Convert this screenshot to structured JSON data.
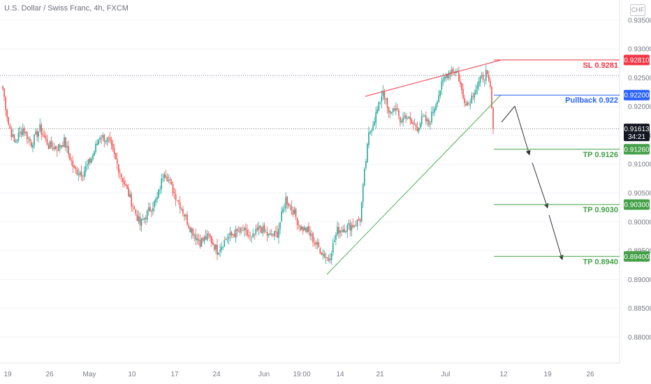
{
  "header": {
    "title": "U.S. Dollar / Swiss Franc, 4h, FXCM",
    "currency_badge": "CHF"
  },
  "chart_data": {
    "type": "candlestick",
    "title": "U.S. Dollar / Swiss Franc, 4h, FXCM",
    "ylim": [
      0.8755,
      0.9385
    ],
    "y_ticks": [
      "0.93500",
      "0.93000",
      "0.92500",
      "0.92000",
      "0.91500",
      "0.91000",
      "0.90500",
      "0.90000",
      "0.89500",
      "0.89000",
      "0.88500",
      "0.88000"
    ],
    "x_ticks": [
      "19",
      "26",
      "May",
      "10",
      "17",
      "24",
      "Jun",
      "19:00",
      "14",
      "21",
      "Jul",
      "12",
      "19",
      "26"
    ],
    "series_anchors": [
      {
        "i": 0,
        "y": 0.9231
      },
      {
        "i": 4,
        "y": 0.917
      },
      {
        "i": 8,
        "y": 0.9138
      },
      {
        "i": 14,
        "y": 0.9162
      },
      {
        "i": 20,
        "y": 0.9136
      },
      {
        "i": 26,
        "y": 0.9162
      },
      {
        "i": 32,
        "y": 0.9132
      },
      {
        "i": 38,
        "y": 0.9128
      },
      {
        "i": 43,
        "y": 0.914
      },
      {
        "i": 50,
        "y": 0.909
      },
      {
        "i": 56,
        "y": 0.9085
      },
      {
        "i": 62,
        "y": 0.911
      },
      {
        "i": 68,
        "y": 0.915
      },
      {
        "i": 74,
        "y": 0.914
      },
      {
        "i": 80,
        "y": 0.91
      },
      {
        "i": 86,
        "y": 0.906
      },
      {
        "i": 90,
        "y": 0.9035
      },
      {
        "i": 96,
        "y": 0.8995
      },
      {
        "i": 101,
        "y": 0.9015
      },
      {
        "i": 108,
        "y": 0.904
      },
      {
        "i": 113,
        "y": 0.909
      },
      {
        "i": 118,
        "y": 0.906
      },
      {
        "i": 124,
        "y": 0.903
      },
      {
        "i": 131,
        "y": 0.899
      },
      {
        "i": 138,
        "y": 0.8965
      },
      {
        "i": 144,
        "y": 0.8975
      },
      {
        "i": 150,
        "y": 0.895
      },
      {
        "i": 156,
        "y": 0.897
      },
      {
        "i": 162,
        "y": 0.898
      },
      {
        "i": 168,
        "y": 0.8985
      },
      {
        "i": 174,
        "y": 0.897
      },
      {
        "i": 180,
        "y": 0.899
      },
      {
        "i": 186,
        "y": 0.8975
      },
      {
        "i": 192,
        "y": 0.898
      },
      {
        "i": 198,
        "y": 0.904
      },
      {
        "i": 203,
        "y": 0.902
      },
      {
        "i": 208,
        "y": 0.899
      },
      {
        "i": 213,
        "y": 0.8985
      },
      {
        "i": 218,
        "y": 0.8965
      },
      {
        "i": 224,
        "y": 0.8945
      },
      {
        "i": 228,
        "y": 0.8935
      },
      {
        "i": 234,
        "y": 0.8985
      },
      {
        "i": 240,
        "y": 0.899
      },
      {
        "i": 246,
        "y": 0.8995
      },
      {
        "i": 250,
        "y": 0.9005
      },
      {
        "i": 253,
        "y": 0.9085
      },
      {
        "i": 256,
        "y": 0.915
      },
      {
        "i": 260,
        "y": 0.918
      },
      {
        "i": 263,
        "y": 0.92
      },
      {
        "i": 266,
        "y": 0.923
      },
      {
        "i": 270,
        "y": 0.9185
      },
      {
        "i": 274,
        "y": 0.92
      },
      {
        "i": 278,
        "y": 0.9175
      },
      {
        "i": 282,
        "y": 0.9185
      },
      {
        "i": 286,
        "y": 0.917
      },
      {
        "i": 290,
        "y": 0.9165
      },
      {
        "i": 294,
        "y": 0.918
      },
      {
        "i": 298,
        "y": 0.917
      },
      {
        "i": 302,
        "y": 0.92
      },
      {
        "i": 306,
        "y": 0.923
      },
      {
        "i": 310,
        "y": 0.9255
      },
      {
        "i": 314,
        "y": 0.9265
      },
      {
        "i": 318,
        "y": 0.926
      },
      {
        "i": 322,
        "y": 0.9215
      },
      {
        "i": 326,
        "y": 0.9205
      },
      {
        "i": 330,
        "y": 0.923
      },
      {
        "i": 334,
        "y": 0.9245
      },
      {
        "i": 338,
        "y": 0.9258
      },
      {
        "i": 341,
        "y": 0.923
      },
      {
        "i": 343,
        "y": 0.9161
      }
    ],
    "bar_count": 344,
    "current_price_line": 0.91613,
    "dotted_level": 0.9254,
    "levels": [
      {
        "label": "SL 0.9281",
        "tag": "0.92810",
        "value": 0.9281,
        "color": "#f23645"
      },
      {
        "label": "Pullback 0.922",
        "tag": "0.92200",
        "value": 0.922,
        "color": "#2962ff"
      },
      {
        "label": "TP 0.9126",
        "tag": "0.91260",
        "value": 0.9126,
        "color": "#43a047"
      },
      {
        "label": "TP 0.9030",
        "tag": "0.90300",
        "value": 0.903,
        "color": "#43a047"
      },
      {
        "label": "TP 0.8940",
        "tag": "0.89400",
        "value": 0.894,
        "color": "#43a047"
      }
    ],
    "current_tag": {
      "price": "0.91613",
      "countdown": "34:21"
    },
    "colors": {
      "up": "#26a69a",
      "down": "#ef5350",
      "grid": "#f0f3fa",
      "axis_text": "#787b86"
    }
  }
}
